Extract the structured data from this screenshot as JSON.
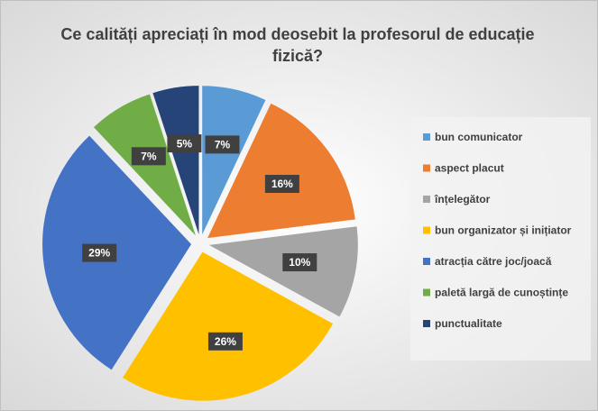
{
  "chart_data": {
    "type": "pie",
    "title": "Ce calități apreciați în mod deosebit la profesorul de educație fizică?",
    "categories": [
      "bun comunicator",
      "aspect placut",
      "înțelegător",
      "bun organizator și inițiator",
      "atracția către joc/joacă",
      "paletă largă de cunoștințe",
      "punctualitate"
    ],
    "values": [
      7,
      16,
      10,
      26,
      29,
      7,
      5
    ],
    "value_labels": [
      "7%",
      "16%",
      "10%",
      "26%",
      "29%",
      "7%",
      "5%"
    ],
    "colors": [
      "#5b9bd5",
      "#ed7d31",
      "#a5a5a5",
      "#ffc000",
      "#4472c4",
      "#70ad47",
      "#264478"
    ],
    "legend": "right"
  }
}
